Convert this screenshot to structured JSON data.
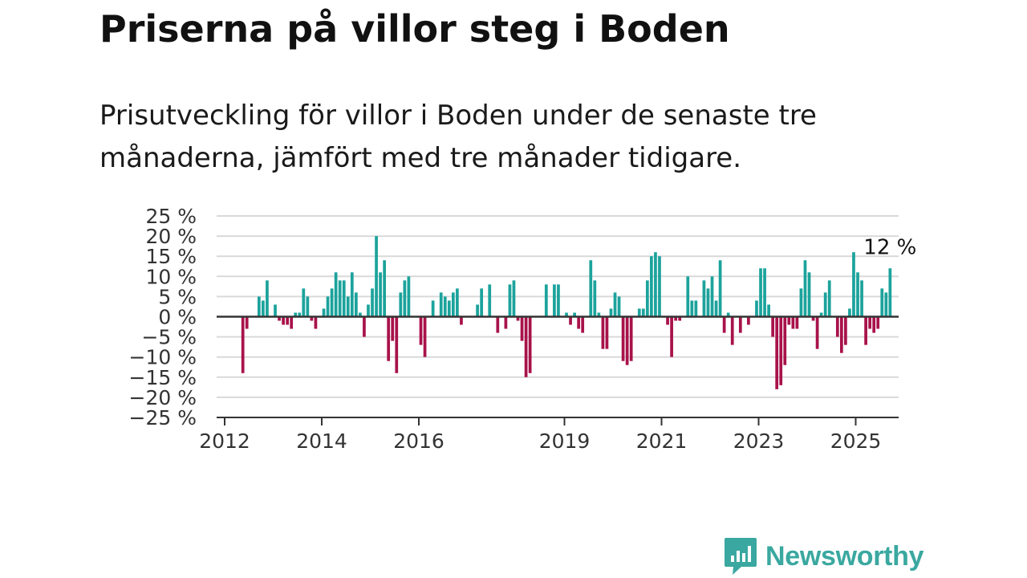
{
  "header": {
    "title": "Priserna på villor steg i Boden",
    "subtitle": "Prisutveckling för villor i Boden under de senaste tre månaderna, jämfört med tre månader tidigare."
  },
  "brand": {
    "name": "Newsworthy",
    "color": "#3aa8a0",
    "icon": "bar-chart-speech-bubble-icon"
  },
  "chart_data": {
    "type": "bar",
    "title": "",
    "xlabel": "",
    "ylabel": "",
    "ylim": [
      -25,
      25
    ],
    "y_ticks": [
      25,
      20,
      15,
      10,
      5,
      0,
      -5,
      -10,
      -15,
      -20,
      -25
    ],
    "y_tick_labels": [
      "25 %",
      "20 %",
      "15 %",
      "10 %",
      "5 %",
      "0 %",
      "−5 %",
      "−10 %",
      "−15 %",
      "−20 %",
      "−25 %"
    ],
    "x_ticks": [
      {
        "year": 2012,
        "label": "2012"
      },
      {
        "year": 2014,
        "label": "2014"
      },
      {
        "year": 2016,
        "label": "2016"
      },
      {
        "year": 2019,
        "label": "2019"
      },
      {
        "year": 2021,
        "label": "2021"
      },
      {
        "year": 2023,
        "label": "2023"
      },
      {
        "year": 2025,
        "label": "2025"
      }
    ],
    "start_year": 2012,
    "start_month": 1,
    "grid": true,
    "legend": "none",
    "positive_color": "#1ba39c",
    "negative_color": "#a8124a",
    "end_label": "12 %",
    "values": [
      0,
      0,
      0,
      0,
      -14,
      -3,
      0,
      0,
      5,
      4,
      9,
      0,
      3,
      -1,
      -2,
      -2,
      -3,
      1,
      1,
      7,
      5,
      -1,
      -3,
      0,
      2,
      5,
      7,
      11,
      9,
      9,
      5,
      11,
      6,
      1,
      -5,
      3,
      7,
      20,
      11,
      14,
      -11,
      -6,
      -14,
      6,
      9,
      10,
      0,
      0,
      -7,
      -10,
      0,
      4,
      0,
      6,
      5,
      4,
      6,
      7,
      -2,
      0,
      0,
      0,
      3,
      7,
      0,
      8,
      0,
      -4,
      0,
      -3,
      8,
      9,
      -1,
      -6,
      -15,
      -14,
      0,
      0,
      0,
      8,
      0,
      8,
      8,
      0,
      1,
      -2,
      1,
      -3,
      -4,
      0,
      14,
      9,
      1,
      -8,
      -8,
      2,
      6,
      5,
      -11,
      -12,
      -11,
      0,
      2,
      2,
      9,
      15,
      16,
      15,
      0,
      -2,
      -10,
      -1,
      -1,
      0,
      10,
      4,
      4,
      0,
      9,
      7,
      10,
      4,
      14,
      -4,
      1,
      -7,
      0,
      -4,
      0,
      -2,
      0,
      4,
      12,
      12,
      3,
      -5,
      -18,
      -17,
      -12,
      -2,
      -3,
      -3,
      7,
      14,
      11,
      -1,
      -8,
      1,
      6,
      9,
      0,
      -5,
      -9,
      -7,
      2,
      16,
      11,
      9,
      -7,
      -3,
      -4,
      -3,
      7,
      6,
      12
    ]
  }
}
